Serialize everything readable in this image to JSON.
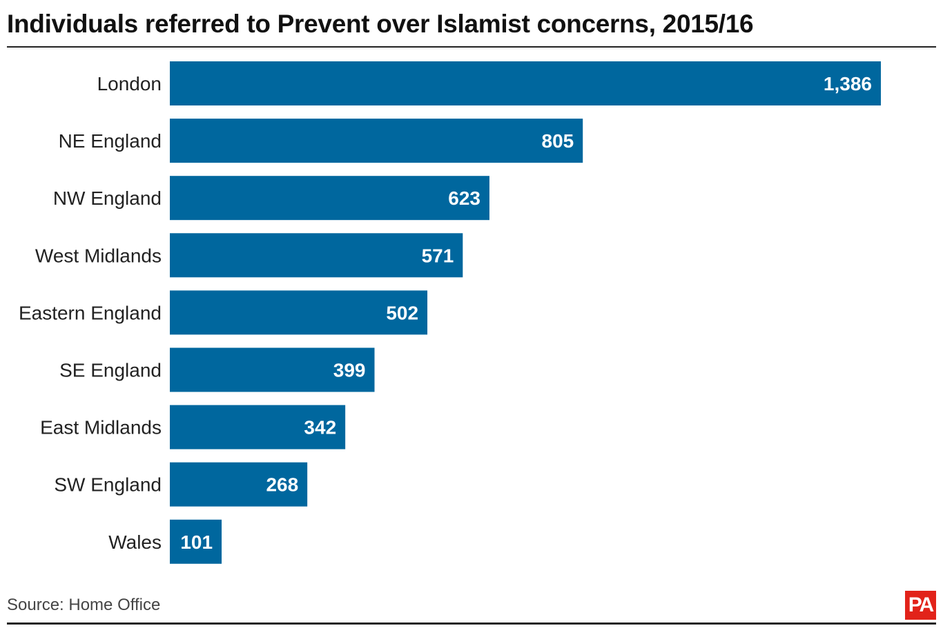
{
  "chart_data": {
    "type": "bar",
    "orientation": "horizontal",
    "title": "Individuals referred to Prevent over Islamist concerns, 2015/16",
    "categories": [
      "London",
      "NE England",
      "NW England",
      "West Midlands",
      "Eastern England",
      "SE England",
      "East Midlands",
      "SW England",
      "Wales"
    ],
    "values": [
      1386,
      805,
      623,
      571,
      502,
      399,
      342,
      268,
      101
    ],
    "value_labels": [
      "1,386",
      "805",
      "623",
      "571",
      "502",
      "399",
      "342",
      "268",
      "101"
    ],
    "xlabel": "",
    "ylabel": "",
    "xlim": [
      0,
      1386
    ],
    "grid": false,
    "bar_color": "#00679e"
  },
  "footer": {
    "source": "Source: Home Office",
    "logo": "PA"
  }
}
